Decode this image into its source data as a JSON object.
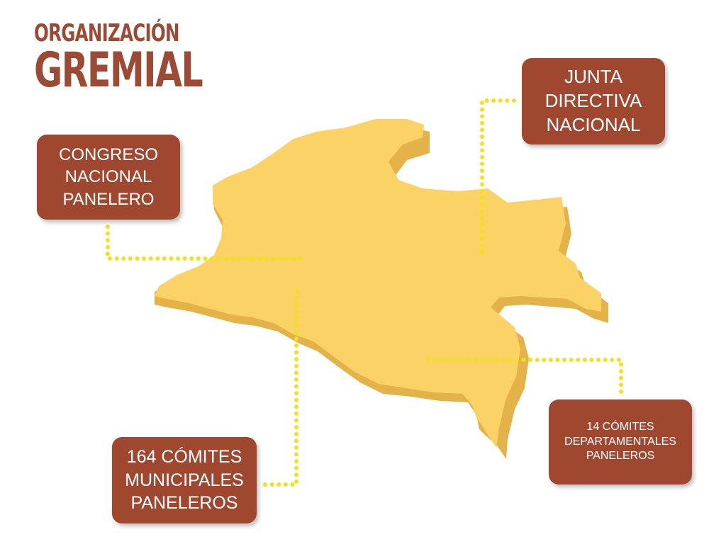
{
  "title": {
    "line1": "ORGANIZACIÓN",
    "line2": "GREMIAL"
  },
  "boxes": {
    "congreso": "CONGRESO\nNACIONAL\nPANELERO",
    "junta": "JUNTA\nDIRECTIVA\nNACIONAL",
    "comites_municipales": "164 CÓMITES\nMUNICIPALES\nPANELEROS",
    "comites_departamentales": "14 CÓMITES\nDEPARTAMENTALES\nPANELEROS"
  },
  "colors": {
    "box_fill": "#a0472f",
    "title": "#9c4a33",
    "map_top": "#fbd265",
    "map_side": "#e3b249",
    "connector": "#f2e21b"
  }
}
